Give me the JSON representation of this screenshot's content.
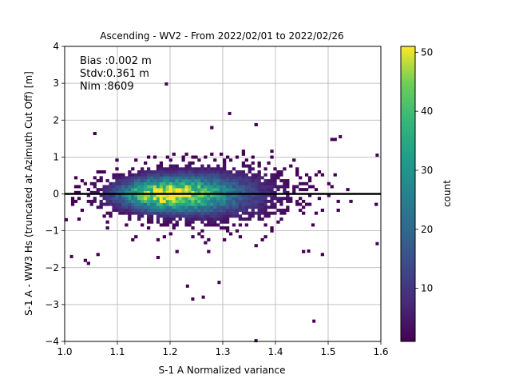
{
  "chart_data": {
    "type": "heatmap",
    "title": "Ascending - WV2 - From 2022/02/01 to 2022/02/26",
    "xlabel": "S-1 A Normalized variance",
    "ylabel": "S-1 A - WW3 Hs (truncated at Azimuth Cut Off) [m]",
    "xlim": [
      1.0,
      1.6
    ],
    "ylim": [
      -4,
      4
    ],
    "xticks": [
      "1.0",
      "1.1",
      "1.2",
      "1.3",
      "1.4",
      "1.5",
      "1.6"
    ],
    "yticks": [
      "−4",
      "−3",
      "−2",
      "−1",
      "0",
      "1",
      "2",
      "3",
      "4"
    ],
    "grid": true,
    "annotations": [
      "Bias :0.002 m",
      "Stdv:0.361 m",
      "Nim :8609"
    ],
    "reference_line": {
      "y": 0,
      "color": "#000000"
    },
    "colorbar": {
      "label": "count",
      "range": [
        1,
        51
      ],
      "ticks": [
        "10",
        "20",
        "30",
        "40",
        "50"
      ],
      "colormap": "viridis"
    },
    "density_peak": {
      "x": 1.19,
      "y": 0.0,
      "count": 51
    },
    "outliers": [
      {
        "x": 1.19,
        "y": 2.98
      },
      {
        "x": 1.31,
        "y": 2.18
      },
      {
        "x": 1.59,
        "y": 1.05
      },
      {
        "x": 1.52,
        "y": 1.55
      },
      {
        "x": 1.46,
        "y": -1.55
      },
      {
        "x": 1.47,
        "y": -3.45
      },
      {
        "x": 1.36,
        "y": -3.98
      },
      {
        "x": 1.26,
        "y": -2.8
      },
      {
        "x": 1.29,
        "y": -2.4
      },
      {
        "x": 1.23,
        "y": -2.5
      },
      {
        "x": 1.24,
        "y": -2.85
      },
      {
        "x": 1.01,
        "y": -1.7
      },
      {
        "x": 1.0,
        "y": -0.7
      },
      {
        "x": 1.59,
        "y": -1.35
      }
    ]
  }
}
